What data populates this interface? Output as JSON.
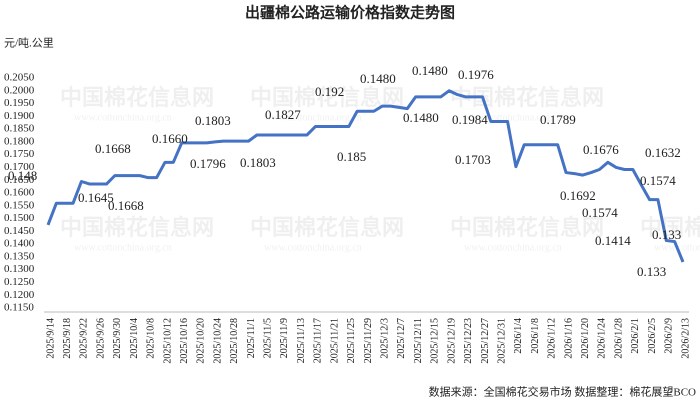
{
  "chart_data": {
    "type": "line",
    "title": "出疆棉公路运输价格指数走势图",
    "y_axis_label": "元/吨.公里",
    "footer": "数据来源：全国棉花交易市场    数据整理：棉花展望BCO",
    "watermark": "中国棉花信息网",
    "watermark_url": "www.cottonchina.org.cn",
    "categories": [
      "2025/9/14",
      null,
      "2025/9/18",
      null,
      "2025/9/22",
      null,
      "2025/9/26",
      null,
      "2025/9/30",
      null,
      "2025/10/4",
      null,
      "2025/10/8",
      null,
      "2025/10/12",
      null,
      "2025/10/16",
      null,
      "2025/10/20",
      null,
      "2025/10/24",
      null,
      "2025/10/28",
      null,
      "2025/11/1",
      null,
      "2025/11/5",
      null,
      "2025/11/9",
      null,
      "2025/11/13",
      null,
      "2025/11/17",
      null,
      "2025/11/21",
      null,
      "2025/11/25",
      null,
      "2025/11/29",
      null,
      "2025/12/3",
      null,
      "2025/12/7",
      null,
      "2025/12/11",
      null,
      "2025/12/15",
      null,
      "2025/12/19",
      null,
      "2025/12/23",
      null,
      "2025/12/27",
      null,
      "2025/12/31",
      null,
      "2026/1/4",
      null,
      "2026/1/8",
      null,
      "2026/1/12",
      null,
      "2026/1/16",
      null,
      "2026/1/20",
      null,
      "2026/1/24",
      null,
      "2026/1/28",
      null,
      "2026/2/1",
      null,
      "2026/2/5",
      null,
      "2026/2/9",
      null,
      "2026/2/13"
    ],
    "series": [
      {
        "name": "出疆棉公路运输价格指数",
        "color": "#4472c4",
        "values": [
          0.1475,
          0.156,
          0.156,
          0.156,
          0.1645,
          0.1635,
          0.1635,
          0.1635,
          0.1668,
          0.1668,
          0.1668,
          0.1668,
          0.166,
          0.166,
          0.172,
          0.172,
          0.1796,
          0.1796,
          0.1796,
          0.1796,
          0.18,
          0.1803,
          0.1803,
          0.1803,
          0.1803,
          0.1827,
          0.1827,
          0.1827,
          0.1827,
          0.1827,
          0.1827,
          0.1827,
          0.186,
          0.186,
          0.186,
          0.186,
          0.186,
          0.192,
          0.192,
          0.192,
          0.194,
          0.194,
          0.1935,
          0.193,
          0.1976,
          0.1976,
          0.1976,
          0.1976,
          0.2,
          0.1985,
          0.1976,
          0.1976,
          0.1976,
          0.188,
          0.188,
          0.188,
          0.1703,
          0.1789,
          0.1789,
          0.1789,
          0.1789,
          0.1789,
          0.168,
          0.1676,
          0.167,
          0.168,
          0.1692,
          0.172,
          0.17,
          0.1692,
          0.1692,
          0.1632,
          0.1574,
          0.1574,
          0.1414,
          0.141,
          0.133
        ]
      }
    ],
    "annotations": [
      "0.148",
      "0.1645",
      "0.1668",
      "0.1668",
      "0.1660",
      "0.1803",
      "0.1796",
      "0.1803",
      "0.1827",
      "0.192",
      "0.185",
      "0.1480",
      "0.1480",
      "0.1480",
      "0.1976",
      "0.1984",
      "0.1703",
      "0.1789",
      "0.1676",
      "0.1692",
      "0.1632",
      "0.1574",
      "0.1574",
      "0.1414",
      "0.133",
      "0.133"
    ],
    "ylim": [
      0.115,
      0.205
    ],
    "yticks": [
      {
        "value": 0.115,
        "label": "0.1150"
      },
      {
        "value": 0.12,
        "label": "0.1200"
      },
      {
        "value": 0.125,
        "label": "0.1250"
      },
      {
        "value": 0.13,
        "label": "0.1300"
      },
      {
        "value": 0.135,
        "label": "0.1350"
      },
      {
        "value": 0.14,
        "label": "0.1400"
      },
      {
        "value": 0.145,
        "label": "0.1450"
      },
      {
        "value": 0.15,
        "label": "0.1500"
      },
      {
        "value": 0.155,
        "label": "0.1550"
      },
      {
        "value": 0.16,
        "label": "0.1600"
      },
      {
        "value": 0.165,
        "label": "0.1650"
      },
      {
        "value": 0.17,
        "label": "0.1700"
      },
      {
        "value": 0.175,
        "label": "0.1750"
      },
      {
        "value": 0.18,
        "label": "0.1800"
      },
      {
        "value": 0.185,
        "label": "0.1850"
      },
      {
        "value": 0.19,
        "label": "0.1900"
      },
      {
        "value": 0.195,
        "label": "0.1950"
      },
      {
        "value": 0.2,
        "label": "0.2000"
      },
      {
        "value": 0.205,
        "label": "0.2050"
      }
    ],
    "grid": false
  }
}
